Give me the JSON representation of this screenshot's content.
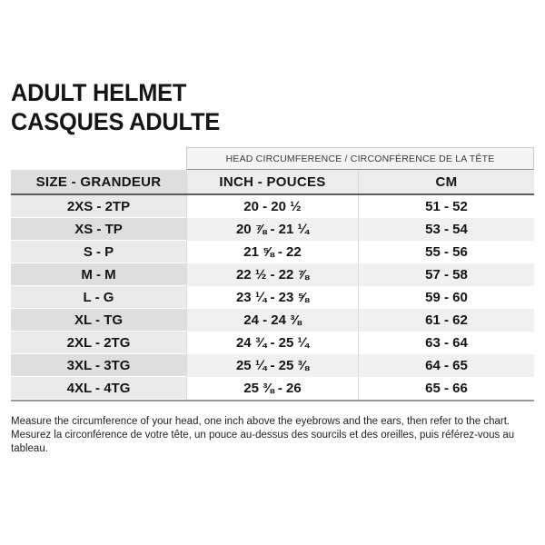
{
  "title": {
    "line1": "ADULT HELMET",
    "line2": "CASQUES ADULTE"
  },
  "table": {
    "banner": "HEAD CIRCUMFERENCE / CIRCONFÉRENCE DE LA TÊTE",
    "columns": [
      "SIZE - GRANDEUR",
      "INCH - POUCES",
      "CM"
    ],
    "rows": [
      {
        "size": "2XS - 2TP",
        "inch": "20 - 20 ½",
        "cm": "51 - 52"
      },
      {
        "size": "XS - TP",
        "inch": "20 ⅞ - 21 ¼",
        "cm": "53 - 54"
      },
      {
        "size": "S - P",
        "inch": "21 ⅝ - 22",
        "cm": "55 - 56"
      },
      {
        "size": "M - M",
        "inch": "22 ½ - 22 ⅞",
        "cm": "57 - 58"
      },
      {
        "size": "L - G",
        "inch": "23 ¼ - 23 ⅝",
        "cm": "59 - 60"
      },
      {
        "size": "XL - TG",
        "inch": "24 - 24 ⅜",
        "cm": "61 - 62"
      },
      {
        "size": "2XL - 2TG",
        "inch": "24 ¾ - 25 ¼",
        "cm": "63 - 64"
      },
      {
        "size": "3XL - 3TG",
        "inch": "25 ¼ - 25 ⅜",
        "cm": "64 - 65"
      },
      {
        "size": "4XL - 4TG",
        "inch": "25 ⅜ - 26",
        "cm": "65 - 66"
      }
    ]
  },
  "footer": {
    "line1": "Measure the circumference of your head, one inch above the eyebrows and the ears, then refer to the chart.",
    "line2": "Mesurez la circonférence de votre tête, un pouce au-dessus des sourcils et des oreilles, puis référez-vous au tableau."
  },
  "colors": {
    "text": "#151515",
    "banner_bg": "#f4f4f4",
    "header_size_bg": "#dedede",
    "header_value_bg": "#ececec",
    "row_odd_size_bg": "#eaeaea",
    "row_odd_value_bg": "#ffffff",
    "row_even_size_bg": "#dedede",
    "row_even_value_bg": "#f0f0f0",
    "header_rule": "#5c5c5c",
    "bottom_rule": "#9a9a9a"
  }
}
